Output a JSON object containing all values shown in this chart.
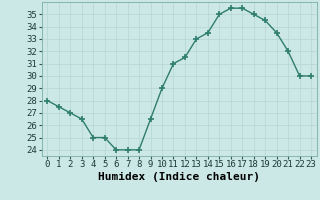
{
  "x": [
    0,
    1,
    2,
    3,
    4,
    5,
    6,
    7,
    8,
    9,
    10,
    11,
    12,
    13,
    14,
    15,
    16,
    17,
    18,
    19,
    20,
    21,
    22,
    23
  ],
  "y": [
    28,
    27.5,
    27,
    26.5,
    25,
    25,
    24,
    24,
    24,
    26.5,
    29,
    31,
    31.5,
    33,
    33.5,
    35,
    35.5,
    35.5,
    35,
    34.5,
    33.5,
    32,
    30,
    30
  ],
  "xlabel": "Humidex (Indice chaleur)",
  "ylim": [
    23.5,
    36
  ],
  "xlim": [
    -0.5,
    23.5
  ],
  "yticks": [
    24,
    25,
    26,
    27,
    28,
    29,
    30,
    31,
    32,
    33,
    34,
    35
  ],
  "xticks": [
    0,
    1,
    2,
    3,
    4,
    5,
    6,
    7,
    8,
    9,
    10,
    11,
    12,
    13,
    14,
    15,
    16,
    17,
    18,
    19,
    20,
    21,
    22,
    23
  ],
  "xtick_labels": [
    "0",
    "1",
    "2",
    "3",
    "4",
    "5",
    "6",
    "7",
    "8",
    "9",
    "10",
    "11",
    "12",
    "13",
    "14",
    "15",
    "16",
    "17",
    "18",
    "19",
    "20",
    "21",
    "22",
    "23"
  ],
  "line_color": "#2e7d6e",
  "marker": "+",
  "marker_size": 4,
  "bg_color": "#cce8e6",
  "grid_color": "#b8d8d6",
  "tick_fontsize": 6.5,
  "xlabel_fontsize": 8,
  "line_width": 1.0
}
